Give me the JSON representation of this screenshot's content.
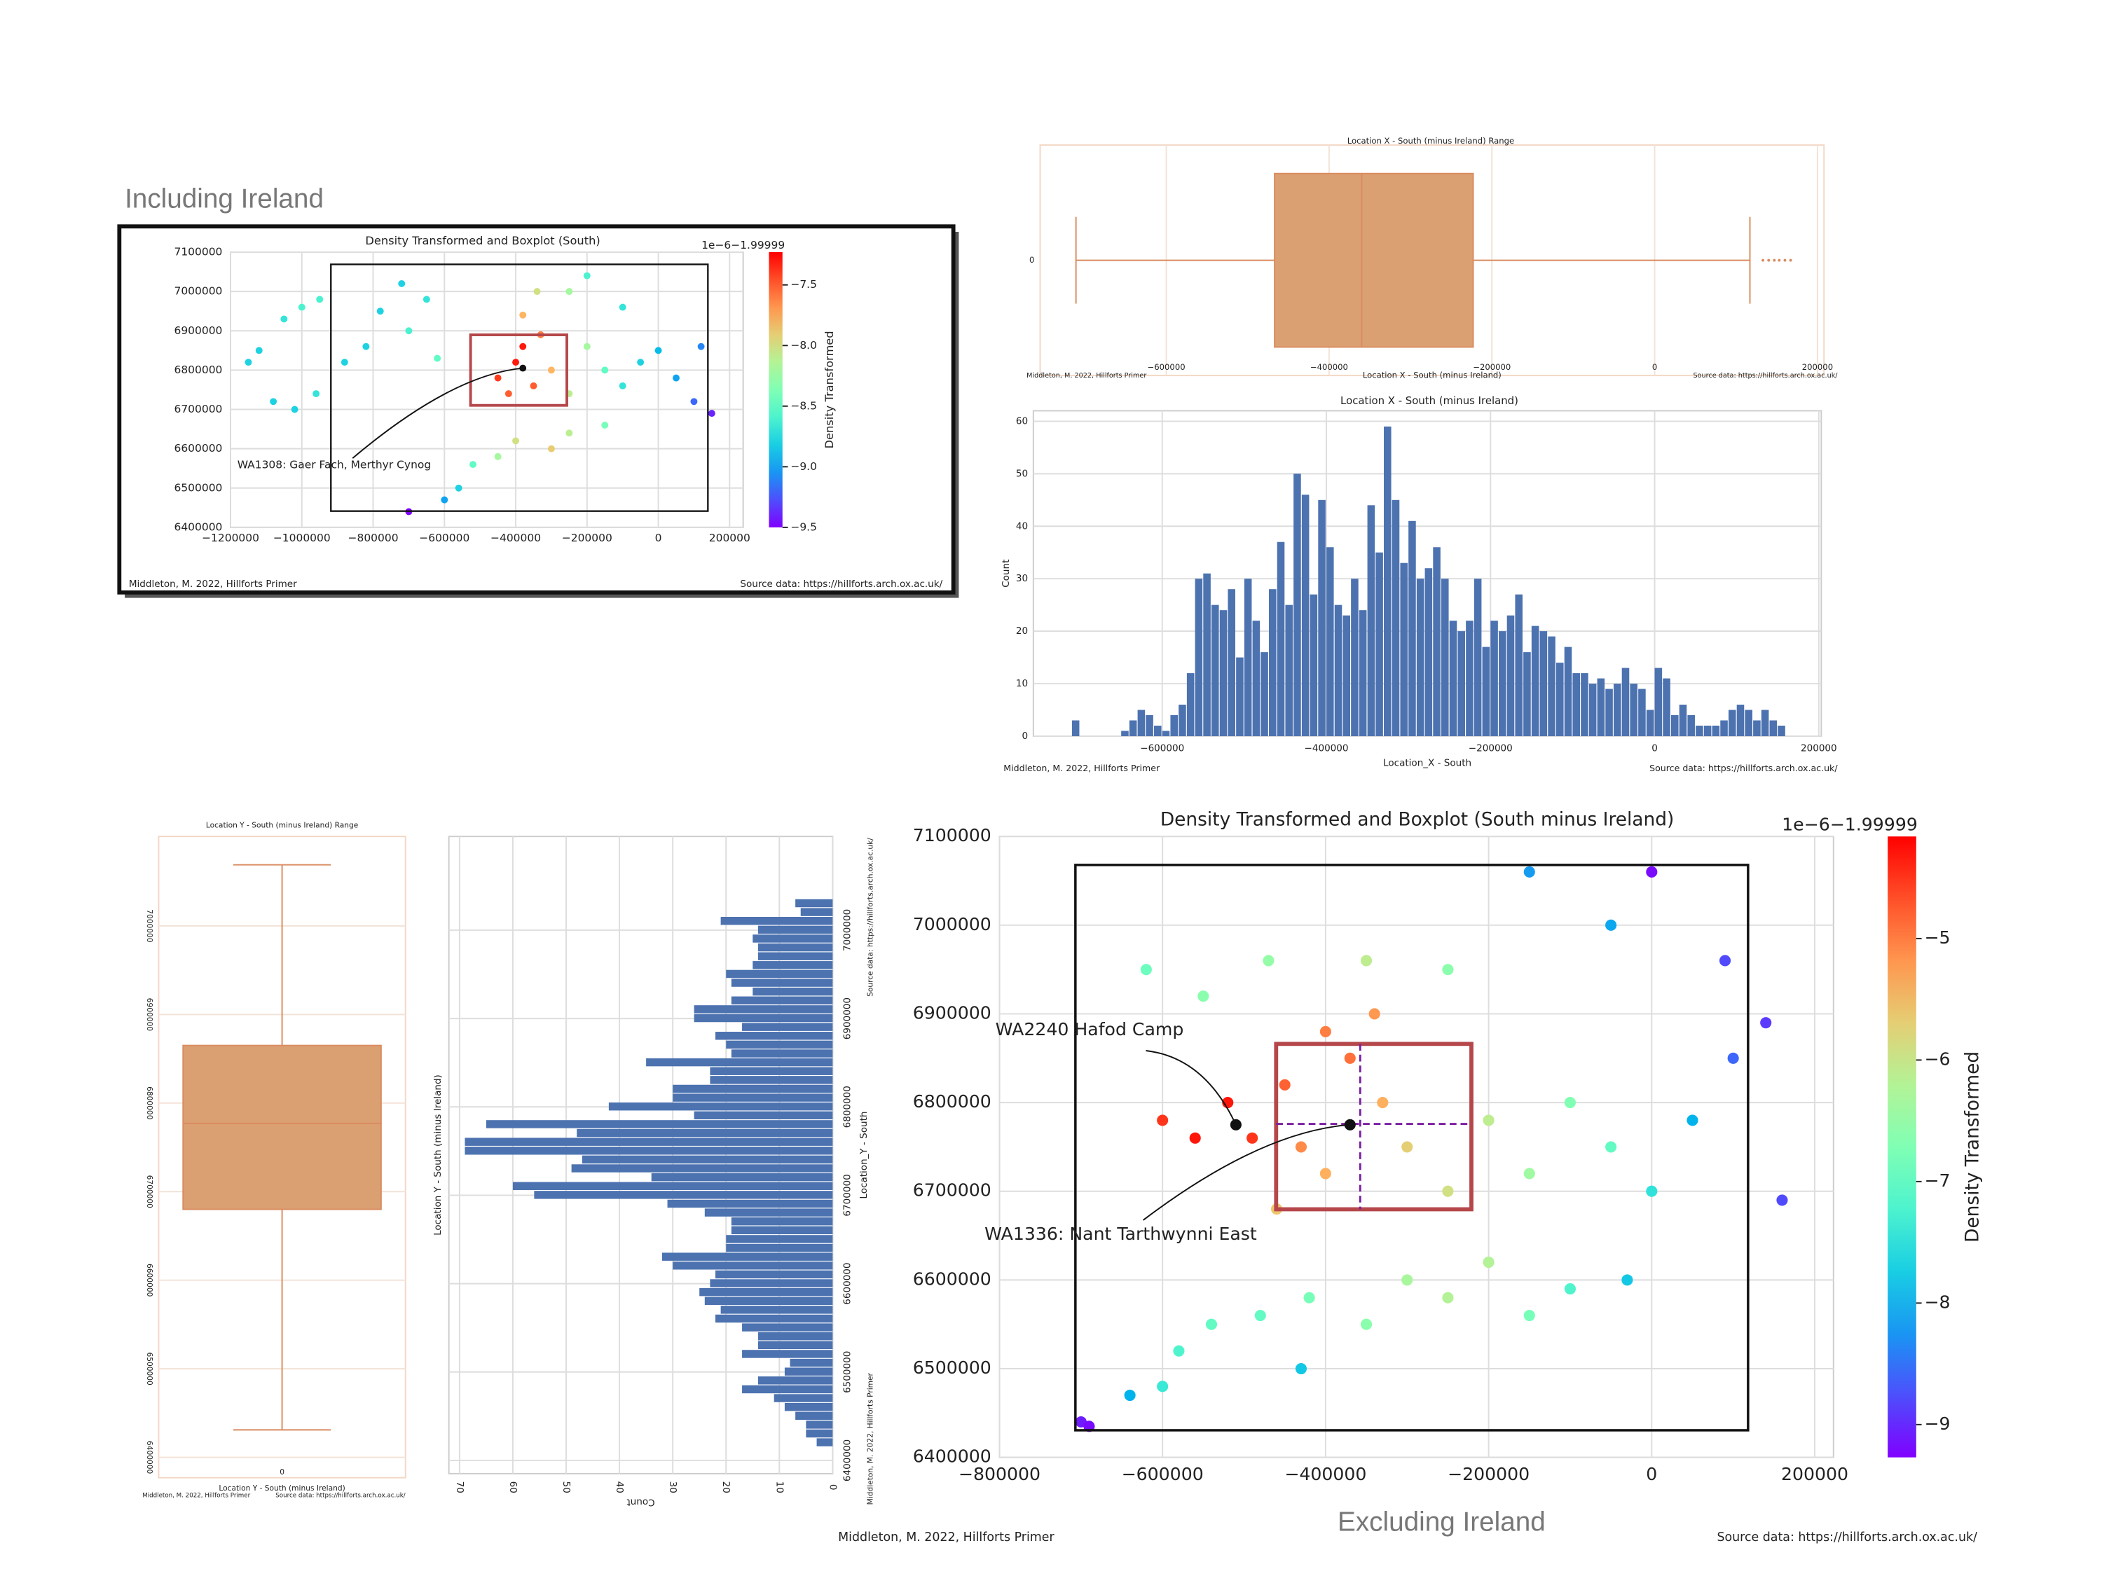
{
  "headings": {
    "including": "Including Ireland",
    "excluding": "Excluding Ireland"
  },
  "chart_data": [
    {
      "type": "scatter",
      "title": "Density Transformed and Boxplot (South)",
      "x": [
        -1150000,
        -1120000,
        -1050000,
        -1000000,
        -950000,
        -1080000,
        -1020000,
        -960000,
        -880000,
        -820000,
        -780000,
        -720000,
        -650000,
        -700000,
        -620000,
        -700000,
        -600000,
        -560000,
        -520000,
        -450000,
        -400000,
        -300000,
        -250000,
        -150000,
        -450000,
        -400000,
        -380000,
        -350000,
        -420000,
        -300000,
        -250000,
        -200000,
        -150000,
        -100000,
        -50000,
        0,
        50000,
        100000,
        150000,
        120000,
        -340000,
        -250000,
        -200000,
        -100000,
        -380000,
        -330000
      ],
      "y": [
        6820000,
        6850000,
        6930000,
        6960000,
        6980000,
        6720000,
        6700000,
        6740000,
        6820000,
        6860000,
        6950000,
        7020000,
        6980000,
        6900000,
        6830000,
        6440000,
        6470000,
        6500000,
        6560000,
        6580000,
        6620000,
        6600000,
        6640000,
        6660000,
        6780000,
        6820000,
        6860000,
        6760000,
        6740000,
        6800000,
        6740000,
        6860000,
        6800000,
        6760000,
        6820000,
        6850000,
        6780000,
        6720000,
        6690000,
        6860000,
        7000000,
        7000000,
        7040000,
        6960000,
        6940000,
        6890000
      ],
      "c": [
        -8.8,
        -8.8,
        -8.7,
        -8.6,
        -8.6,
        -8.8,
        -8.8,
        -8.7,
        -8.8,
        -8.8,
        -8.8,
        -8.8,
        -8.7,
        -8.6,
        -8.5,
        -9.5,
        -9.0,
        -8.8,
        -8.5,
        -8.2,
        -8.0,
        -7.9,
        -8.1,
        -8.4,
        -7.4,
        -7.3,
        -7.3,
        -7.5,
        -7.5,
        -7.8,
        -8.1,
        -8.2,
        -8.5,
        -8.7,
        -8.8,
        -8.9,
        -9.0,
        -9.2,
        -9.4,
        -9.1,
        -8.0,
        -8.2,
        -8.6,
        -8.7,
        -7.8,
        -7.6
      ],
      "xlim": [
        -1200000,
        238000
      ],
      "xticks": [
        {
          "value": -1200000,
          "label": "−1200000"
        },
        {
          "value": -1000000,
          "label": "−1000000"
        },
        {
          "value": -800000,
          "label": "−800000"
        },
        {
          "value": -600000,
          "label": "−600000"
        },
        {
          "value": -400000,
          "label": "−400000"
        },
        {
          "value": -200000,
          "label": "−200000"
        },
        0,
        200000
      ],
      "ylim": [
        6400000,
        7100000
      ],
      "yticks": [
        6400000,
        6500000,
        6600000,
        6700000,
        6800000,
        6900000,
        7000000,
        7100000
      ],
      "grid": true,
      "colorbar": {
        "label": "Density Transformed",
        "offset_text": "1e−6−1.99999",
        "lim": [
          -9.5,
          -7.23
        ],
        "ticks": [
          {
            "value": -7.5,
            "label": "−7.5"
          },
          {
            "value": -8.0,
            "label": "−8.0"
          },
          {
            "value": -8.5,
            "label": "−8.5"
          },
          {
            "value": -9.0,
            "label": "−9.0"
          },
          {
            "value": -9.5,
            "label": "−9.5"
          }
        ]
      },
      "annotations": [
        {
          "text": "WA1308: Gaer Fach, Merthyr Cynog",
          "point": [
            -380000,
            6805000
          ]
        }
      ],
      "credit_left": "Middleton, M. 2022, Hillforts Primer",
      "credit_right": "Source data: https://hillforts.arch.ox.ac.uk/"
    },
    {
      "type": "box",
      "orientation": "horizontal",
      "title": "Location X - South (minus Ireland) Range",
      "xlabel": "Location X - South (minus Ireland)",
      "categories": [
        "0"
      ],
      "color": "#dba072",
      "stats": {
        "whislo": -711000,
        "q1": -467000,
        "med": -360000,
        "q3": -223000,
        "whishi": 117000
      },
      "fliers": [
        133000,
        140000,
        147000,
        153000,
        160000,
        167000
      ],
      "xlim": [
        -755000,
        208000
      ],
      "xticks": [
        {
          "value": -600000,
          "label": "−600000"
        },
        {
          "value": -400000,
          "label": "−400000"
        },
        {
          "value": -200000,
          "label": "−200000"
        },
        0,
        200000
      ],
      "credit_left": "Middleton, M. 2022, Hillforts Primer",
      "credit_right": "Source data: https://hillforts.arch.ox.ac.uk/"
    },
    {
      "type": "histogram",
      "orientation": "vertical",
      "title": "Location X - South (minus Ireland)",
      "xlabel": "Location_X - South",
      "ylabel": "Count",
      "color": "#4c72b0",
      "bins": [
        -710000,
        -700000,
        -690000,
        -680000,
        -670000,
        -660000,
        -650000,
        -640000,
        -630000,
        -620000,
        -610000,
        -600000,
        -590000,
        -580000,
        -570000,
        -560000,
        -550000,
        -540000,
        -530000,
        -520000,
        -510000,
        -500000,
        -490000,
        -480000,
        -470000,
        -460000,
        -450000,
        -440000,
        -430000,
        -420000,
        -410000,
        -400000,
        -390000,
        -380000,
        -370000,
        -360000,
        -350000,
        -340000,
        -330000,
        -320000,
        -310000,
        -300000,
        -290000,
        -280000,
        -270000,
        -260000,
        -250000,
        -240000,
        -230000,
        -220000,
        -210000,
        -200000,
        -190000,
        -180000,
        -170000,
        -160000,
        -150000,
        -140000,
        -130000,
        -120000,
        -110000,
        -100000,
        -90000,
        -80000,
        -70000,
        -60000,
        -50000,
        -40000,
        -30000,
        -20000,
        -10000,
        0,
        10000,
        20000,
        30000,
        40000,
        50000,
        60000,
        70000,
        80000,
        90000,
        100000,
        110000,
        120000,
        130000,
        140000,
        150000,
        160000
      ],
      "values": [
        3,
        0,
        0,
        0,
        0,
        0,
        1,
        3,
        5,
        4,
        2,
        1,
        4,
        6,
        12,
        30,
        31,
        25,
        24,
        28,
        15,
        30,
        22,
        16,
        28,
        37,
        25,
        50,
        46,
        27,
        45,
        36,
        25,
        23,
        30,
        24,
        44,
        35,
        59,
        45,
        33,
        41,
        30,
        32,
        36,
        30,
        22,
        20,
        22,
        30,
        17,
        22,
        20,
        23,
        27,
        16,
        21,
        20,
        19,
        14,
        17,
        12,
        12,
        10,
        11,
        9,
        10,
        13,
        10,
        9,
        5,
        13,
        11,
        4,
        6,
        4,
        2,
        2,
        2,
        3,
        5,
        6,
        5,
        3,
        5,
        3,
        2
      ],
      "xlim": [
        -757000,
        203000
      ],
      "xticks": [
        {
          "value": -600000,
          "label": "−600000"
        },
        {
          "value": -400000,
          "label": "−400000"
        },
        {
          "value": -200000,
          "label": "−200000"
        },
        0,
        200000
      ],
      "ylim": [
        0,
        62
      ],
      "yticks": [
        0,
        10,
        20,
        30,
        40,
        50,
        60
      ],
      "grid": true,
      "credit_left": "Middleton, M. 2022, Hillforts Primer",
      "credit_right": "Source data: https://hillforts.arch.ox.ac.uk/"
    },
    {
      "type": "box",
      "orientation": "vertical",
      "title": "Location Y - South (minus Ireland) Range",
      "xlabel": "Location Y - South (minus Ireland)",
      "categories": [
        "0"
      ],
      "color": "#dba072",
      "stats": {
        "whislo": 6431000,
        "q1": 6680000,
        "med": 6777000,
        "q3": 6865000,
        "whishi": 7069000
      },
      "fliers": [],
      "ylim": [
        6377000,
        7101000
      ],
      "yticks": [
        6400000,
        6500000,
        6600000,
        6700000,
        6800000,
        6900000,
        7000000
      ],
      "credit_left": "Middleton, M. 2022, Hillforts Primer",
      "credit_right": "Source data: https://hillforts.arch.ox.ac.uk/"
    },
    {
      "type": "histogram",
      "orientation": "horizontal",
      "title": "Location Y - South (minus Ireland)",
      "xlabel": "Count",
      "ylabel": "Location_Y - South",
      "color": "#4c72b0",
      "bins": [
        6415000,
        6425000,
        6435000,
        6445000,
        6455000,
        6465000,
        6475000,
        6485000,
        6495000,
        6505000,
        6515000,
        6525000,
        6535000,
        6545000,
        6555000,
        6565000,
        6575000,
        6585000,
        6595000,
        6605000,
        6615000,
        6625000,
        6635000,
        6645000,
        6655000,
        6665000,
        6675000,
        6685000,
        6695000,
        6705000,
        6715000,
        6725000,
        6735000,
        6745000,
        6755000,
        6765000,
        6775000,
        6785000,
        6795000,
        6805000,
        6815000,
        6825000,
        6835000,
        6845000,
        6855000,
        6865000,
        6875000,
        6885000,
        6895000,
        6905000,
        6915000,
        6925000,
        6935000,
        6945000,
        6955000,
        6965000,
        6975000,
        6985000,
        6995000,
        7005000,
        7015000,
        7025000,
        7035000
      ],
      "values": [
        3,
        5,
        5,
        7,
        9,
        11,
        17,
        14,
        9,
        8,
        17,
        14,
        14,
        17,
        22,
        21,
        24,
        25,
        23,
        22,
        30,
        32,
        20,
        20,
        19,
        19,
        24,
        31,
        56,
        60,
        34,
        49,
        47,
        69,
        69,
        48,
        65,
        26,
        42,
        30,
        30,
        23,
        23,
        35,
        19,
        20,
        22,
        17,
        26,
        26,
        19,
        15,
        19,
        20,
        15,
        14,
        14,
        15,
        14,
        21,
        6,
        7
      ],
      "xlim": [
        72,
        0
      ],
      "xticks": [
        70,
        60,
        50,
        40,
        30,
        20,
        10,
        0
      ],
      "ylim": [
        6385000,
        7106000
      ],
      "yticks": [
        6400000,
        6500000,
        6600000,
        6700000,
        6800000,
        6900000,
        7000000
      ],
      "grid": true,
      "credit_left": "Middleton, M. 2022, Hillforts Primer",
      "credit_right": "Source data: https://hillforts.arch.ox.ac.uk/"
    },
    {
      "type": "scatter",
      "title": "Density Transformed and Boxplot (South minus Ireland)",
      "x": [
        -700000,
        -690000,
        -640000,
        -600000,
        -580000,
        -540000,
        -480000,
        -430000,
        -420000,
        -350000,
        -300000,
        -250000,
        -200000,
        -150000,
        -100000,
        -30000,
        -600000,
        -560000,
        -520000,
        -490000,
        -450000,
        -400000,
        -370000,
        -340000,
        -330000,
        -300000,
        -250000,
        -200000,
        -150000,
        -100000,
        -50000,
        0,
        50000,
        100000,
        140000,
        160000,
        -620000,
        -550000,
        -470000,
        -350000,
        -250000,
        -150000,
        -50000,
        0,
        90000,
        -430000,
        -400000,
        -460000
      ],
      "y": [
        6440000,
        6435000,
        6470000,
        6480000,
        6520000,
        6550000,
        6560000,
        6500000,
        6580000,
        6550000,
        6600000,
        6580000,
        6620000,
        6560000,
        6590000,
        6600000,
        6780000,
        6760000,
        6800000,
        6760000,
        6820000,
        6880000,
        6850000,
        6900000,
        6800000,
        6750000,
        6700000,
        6780000,
        6720000,
        6800000,
        6750000,
        6700000,
        6780000,
        6850000,
        6890000,
        6690000,
        6950000,
        6920000,
        6960000,
        6960000,
        6950000,
        7060000,
        7000000,
        7060000,
        6960000,
        6750000,
        6720000,
        6680000
      ],
      "c": [
        -9.1,
        -9.2,
        -8.0,
        -7.4,
        -7.2,
        -7.0,
        -7.0,
        -7.8,
        -6.8,
        -6.6,
        -6.3,
        -6.2,
        -6.2,
        -6.8,
        -7.2,
        -7.8,
        -4.5,
        -4.3,
        -4.3,
        -4.5,
        -4.8,
        -5.0,
        -4.9,
        -5.2,
        -5.4,
        -5.7,
        -5.9,
        -6.1,
        -6.4,
        -6.7,
        -7.0,
        -7.5,
        -8.0,
        -8.6,
        -8.9,
        -8.8,
        -6.9,
        -6.6,
        -6.5,
        -6.1,
        -6.6,
        -8.2,
        -8.1,
        -9.2,
        -8.8,
        -5.1,
        -5.4,
        -5.6
      ],
      "xlim": [
        -800000,
        223000
      ],
      "xticks": [
        {
          "value": -800000,
          "label": "−800000"
        },
        {
          "value": -600000,
          "label": "−600000"
        },
        {
          "value": -400000,
          "label": "−400000"
        },
        {
          "value": -200000,
          "label": "−200000"
        },
        0,
        200000
      ],
      "ylim": [
        6400000,
        7100000
      ],
      "yticks": [
        6400000,
        6500000,
        6600000,
        6700000,
        6800000,
        6900000,
        7000000,
        7100000
      ],
      "grid": true,
      "colorbar": {
        "label": "Density Transformed",
        "offset_text": "1e−6−1.99999",
        "lim": [
          -9.27,
          -4.16
        ],
        "ticks": [
          {
            "value": -5,
            "label": "−5"
          },
          {
            "value": -6,
            "label": "−6"
          },
          {
            "value": -7,
            "label": "−7"
          },
          {
            "value": -8,
            "label": "−8"
          },
          {
            "value": -9,
            "label": "−9"
          }
        ]
      },
      "annotations": [
        {
          "text": "WA2240  Hafod Camp",
          "point": [
            -510000,
            6775000
          ]
        },
        {
          "text": "WA1336: Nant Tarthwynni East",
          "point": [
            -370000,
            6775000
          ]
        }
      ],
      "credit_left": "Middleton, M. 2022, Hillforts Primer",
      "credit_right": "Source data: https://hillforts.arch.ox.ac.uk/"
    }
  ]
}
